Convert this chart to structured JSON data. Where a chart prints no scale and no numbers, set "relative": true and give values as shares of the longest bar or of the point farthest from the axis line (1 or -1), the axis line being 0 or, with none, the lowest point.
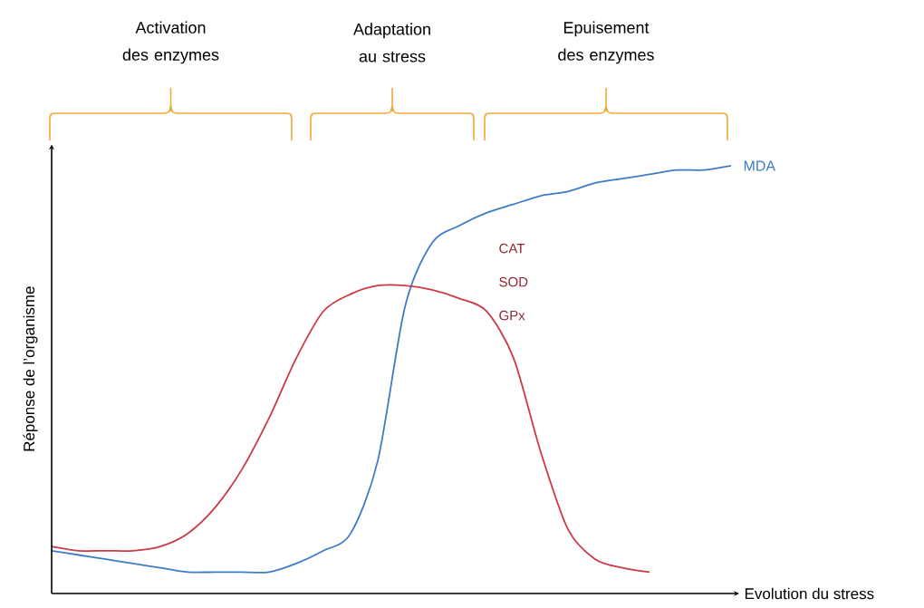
{
  "chart_data": {
    "type": "line",
    "relative": true,
    "xlabel": "Evolution du stress",
    "ylabel": "Réponse de l’organisme",
    "categories": [
      null,
      null,
      null,
      null,
      null,
      null,
      null,
      null,
      null,
      null,
      null,
      null,
      null,
      null,
      null,
      null,
      null,
      null,
      null,
      null,
      null,
      null,
      null,
      null,
      null,
      null
    ],
    "series": [
      {
        "name": "MDA",
        "color": "#3d7cc4",
        "values": [
          0.1,
          0.09,
          0.08,
          0.07,
          0.06,
          0.05,
          0.05,
          0.05,
          0.05,
          0.07,
          0.1,
          0.14,
          0.31,
          0.67,
          0.82,
          0.86,
          0.89,
          0.91,
          0.93,
          0.94,
          0.96,
          0.97,
          0.98,
          0.99,
          0.99,
          1
        ]
      },
      {
        "name": "CAT SOD GPx",
        "color": "#cc3a46",
        "values": [
          0.11,
          0.1,
          0.1,
          0.1,
          0.11,
          0.14,
          0.2,
          0.29,
          0.41,
          0.55,
          0.66,
          0.7,
          0.72,
          0.72,
          0.71,
          0.69,
          0.66,
          0.55,
          0.33,
          0.15,
          0.08,
          0.06,
          0.05,
          null,
          null,
          null
        ]
      }
    ],
    "annotations": [
      "Activation des enzymes",
      "Adaptation au stress",
      "Epuisement des enzymes"
    ]
  }
}
